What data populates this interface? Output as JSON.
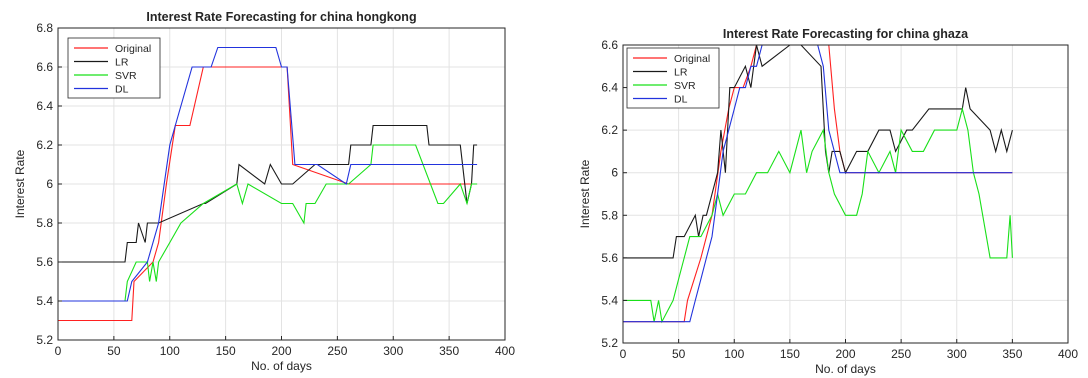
{
  "chart_data": [
    {
      "type": "line",
      "title": "Interest Rate Forecasting for china hongkong",
      "xlabel": "No. of days",
      "ylabel": "Interest Rate",
      "xlim": [
        0,
        400
      ],
      "ylim": [
        5.2,
        6.8
      ],
      "xticks": [
        0,
        50,
        100,
        150,
        200,
        250,
        300,
        350,
        400
      ],
      "yticks": [
        5.2,
        5.4,
        5.6,
        5.8,
        6,
        6.2,
        6.4,
        6.6,
        6.8
      ],
      "ytick_labels": [
        "5.2",
        "5.4",
        "5.6",
        "5.8",
        "6",
        "6.2",
        "6.4",
        "6.6",
        "6.8"
      ],
      "grid": true,
      "legend_position": "top-left",
      "series": [
        {
          "name": "Original",
          "color": "#ff2020",
          "x": [
            0,
            66,
            68,
            85,
            90,
            97,
            105,
            118,
            130,
            140,
            192,
            205,
            210,
            260,
            340,
            375
          ],
          "y": [
            5.3,
            5.3,
            5.5,
            5.6,
            5.7,
            6.0,
            6.3,
            6.3,
            6.6,
            6.6,
            6.6,
            6.6,
            6.1,
            6.0,
            6.0,
            6.0
          ]
        },
        {
          "name": "LR",
          "color": "#1a1a1a",
          "x": [
            0,
            60,
            62,
            70,
            72,
            78,
            80,
            90,
            130,
            132,
            160,
            162,
            185,
            190,
            200,
            210,
            230,
            260,
            262,
            280,
            282,
            330,
            332,
            360,
            366,
            370,
            372,
            375
          ],
          "y": [
            5.6,
            5.6,
            5.7,
            5.7,
            5.8,
            5.7,
            5.8,
            5.8,
            5.9,
            5.9,
            6.0,
            6.1,
            6.0,
            6.1,
            6.0,
            6.0,
            6.1,
            6.1,
            6.2,
            6.2,
            6.3,
            6.3,
            6.2,
            6.2,
            5.9,
            6.0,
            6.2,
            6.2
          ]
        },
        {
          "name": "SVR",
          "color": "#19e019",
          "x": [
            0,
            60,
            62,
            70,
            80,
            82,
            85,
            88,
            90,
            100,
            110,
            130,
            160,
            165,
            170,
            200,
            210,
            220,
            222,
            230,
            240,
            260,
            280,
            282,
            320,
            340,
            345,
            360,
            366,
            370,
            375
          ],
          "y": [
            5.4,
            5.4,
            5.5,
            5.6,
            5.6,
            5.5,
            5.6,
            5.5,
            5.6,
            5.7,
            5.8,
            5.9,
            6.0,
            5.9,
            6.0,
            5.9,
            5.9,
            5.8,
            5.9,
            5.9,
            6.0,
            6.0,
            6.1,
            6.2,
            6.2,
            5.9,
            5.9,
            6.0,
            5.9,
            6.0,
            6.0
          ]
        },
        {
          "name": "DL",
          "color": "#2233dd",
          "x": [
            0,
            62,
            66,
            80,
            90,
            95,
            100,
            105,
            110,
            115,
            120,
            125,
            130,
            137,
            143,
            195,
            200,
            205,
            212,
            232,
            258,
            262,
            266,
            330,
            345,
            375
          ],
          "y": [
            5.4,
            5.4,
            5.5,
            5.6,
            5.8,
            6.0,
            6.2,
            6.3,
            6.4,
            6.5,
            6.6,
            6.6,
            6.6,
            6.6,
            6.7,
            6.7,
            6.6,
            6.6,
            6.1,
            6.1,
            6.0,
            6.1,
            6.1,
            6.1,
            6.1,
            6.1
          ]
        }
      ]
    },
    {
      "type": "line",
      "title": "Interest Rate Forecasting for china ghaza",
      "xlabel": "No. of days",
      "ylabel": "Interest Rate",
      "xlim": [
        0,
        400
      ],
      "ylim": [
        5.2,
        6.6
      ],
      "xticks": [
        0,
        50,
        100,
        150,
        200,
        250,
        300,
        350,
        400
      ],
      "yticks": [
        5.2,
        5.4,
        5.6,
        5.8,
        6,
        6.2,
        6.4,
        6.6
      ],
      "ytick_labels": [
        "5.2",
        "5.4",
        "5.6",
        "5.8",
        "6",
        "6.2",
        "6.4",
        "6.6"
      ],
      "grid": true,
      "legend_position": "top-left",
      "series": [
        {
          "name": "Original",
          "color": "#ff2020",
          "x": [
            0,
            55,
            58,
            70,
            80,
            88,
            95,
            100,
            108,
            115,
            120,
            185,
            190,
            195,
            200,
            350
          ],
          "y": [
            5.3,
            5.3,
            5.4,
            5.6,
            5.8,
            6.1,
            6.3,
            6.4,
            6.4,
            6.5,
            6.6,
            6.6,
            6.3,
            6.1,
            6.0,
            6.0
          ]
        },
        {
          "name": "LR",
          "color": "#1a1a1a",
          "x": [
            0,
            45,
            48,
            55,
            65,
            68,
            72,
            75,
            80,
            85,
            88,
            92,
            96,
            100,
            110,
            115,
            120,
            125,
            150,
            160,
            178,
            182,
            185,
            188,
            195,
            200,
            210,
            220,
            230,
            240,
            245,
            255,
            260,
            275,
            280,
            305,
            308,
            312,
            330,
            335,
            340,
            345,
            350
          ],
          "y": [
            5.6,
            5.6,
            5.7,
            5.7,
            5.8,
            5.7,
            5.8,
            5.8,
            5.9,
            6.0,
            6.2,
            6.0,
            6.4,
            6.4,
            6.5,
            6.4,
            6.6,
            6.5,
            6.6,
            6.6,
            6.5,
            6.1,
            6.0,
            6.1,
            6.1,
            6.0,
            6.1,
            6.1,
            6.2,
            6.2,
            6.1,
            6.2,
            6.2,
            6.3,
            6.3,
            6.3,
            6.4,
            6.3,
            6.2,
            6.1,
            6.2,
            6.1,
            6.2
          ]
        },
        {
          "name": "SVR",
          "color": "#19e019",
          "x": [
            0,
            25,
            28,
            32,
            35,
            45,
            50,
            55,
            60,
            70,
            80,
            85,
            90,
            100,
            110,
            120,
            130,
            140,
            150,
            160,
            165,
            170,
            180,
            185,
            190,
            200,
            210,
            215,
            220,
            230,
            240,
            245,
            250,
            260,
            270,
            280,
            300,
            305,
            310,
            315,
            320,
            330,
            340,
            345,
            348,
            350
          ],
          "y": [
            5.4,
            5.4,
            5.3,
            5.4,
            5.3,
            5.4,
            5.5,
            5.6,
            5.7,
            5.7,
            5.8,
            5.9,
            5.8,
            5.9,
            5.9,
            6.0,
            6.0,
            6.1,
            6.0,
            6.2,
            6.0,
            6.1,
            6.2,
            6.0,
            5.9,
            5.8,
            5.8,
            5.9,
            6.1,
            6.0,
            6.1,
            6.0,
            6.2,
            6.1,
            6.1,
            6.2,
            6.2,
            6.3,
            6.2,
            6.0,
            5.9,
            5.6,
            5.6,
            5.6,
            5.8,
            5.6
          ]
        },
        {
          "name": "DL",
          "color": "#2233dd",
          "x": [
            0,
            60,
            65,
            70,
            75,
            80,
            85,
            90,
            95,
            100,
            105,
            110,
            115,
            120,
            125,
            130,
            135,
            175,
            180,
            185,
            195,
            350
          ],
          "y": [
            5.3,
            5.3,
            5.4,
            5.5,
            5.6,
            5.7,
            5.9,
            6.1,
            6.2,
            6.3,
            6.4,
            6.4,
            6.5,
            6.5,
            6.6,
            6.6,
            6.6,
            6.6,
            6.5,
            6.2,
            6.0,
            6.0
          ]
        }
      ]
    }
  ]
}
